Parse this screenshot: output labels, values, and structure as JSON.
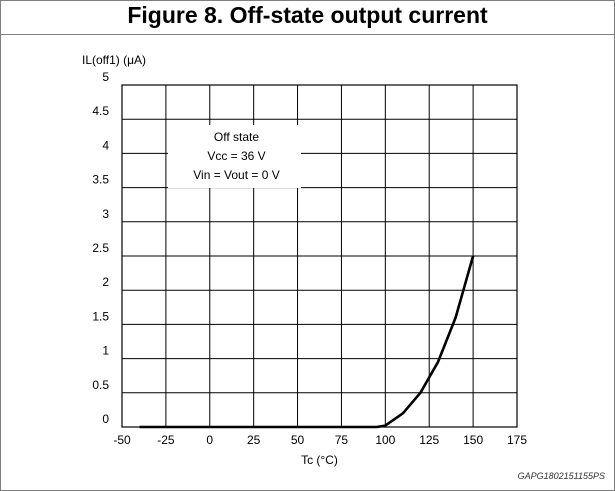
{
  "figure": {
    "title": "Figure 8. Off-state output current",
    "code": "GAPG1802151155PS"
  },
  "chart_data": {
    "type": "line",
    "xlabel": "Tc (°C)",
    "ylabel": "IL(off1) (μA)",
    "xlim": [
      -50,
      175
    ],
    "ylim": [
      0,
      5
    ],
    "xticks": [
      -50,
      -25,
      0,
      25,
      50,
      75,
      100,
      125,
      150,
      175
    ],
    "xtick_labels": [
      "-50",
      "-25",
      "0",
      "25",
      "50",
      "75",
      "100",
      "125",
      "150",
      "175"
    ],
    "yticks": [
      0,
      0.5,
      1,
      1.5,
      2,
      2.5,
      3,
      3.5,
      4,
      4.5,
      5
    ],
    "ytick_labels": [
      "0",
      "0.5",
      "1",
      "1.5",
      "2",
      "2.5",
      "3",
      "3.5",
      "4",
      "4.5",
      "5"
    ],
    "grid": true,
    "annotation": [
      "Off state",
      "Vcc = 36 V",
      "Vin = Vout = 0 V"
    ],
    "series": [
      {
        "x": [
          -40,
          0,
          50,
          95,
          100,
          110,
          120,
          130,
          140,
          150
        ],
        "y": [
          0,
          0,
          0,
          0,
          0.02,
          0.2,
          0.5,
          0.95,
          1.6,
          2.5
        ]
      }
    ]
  }
}
